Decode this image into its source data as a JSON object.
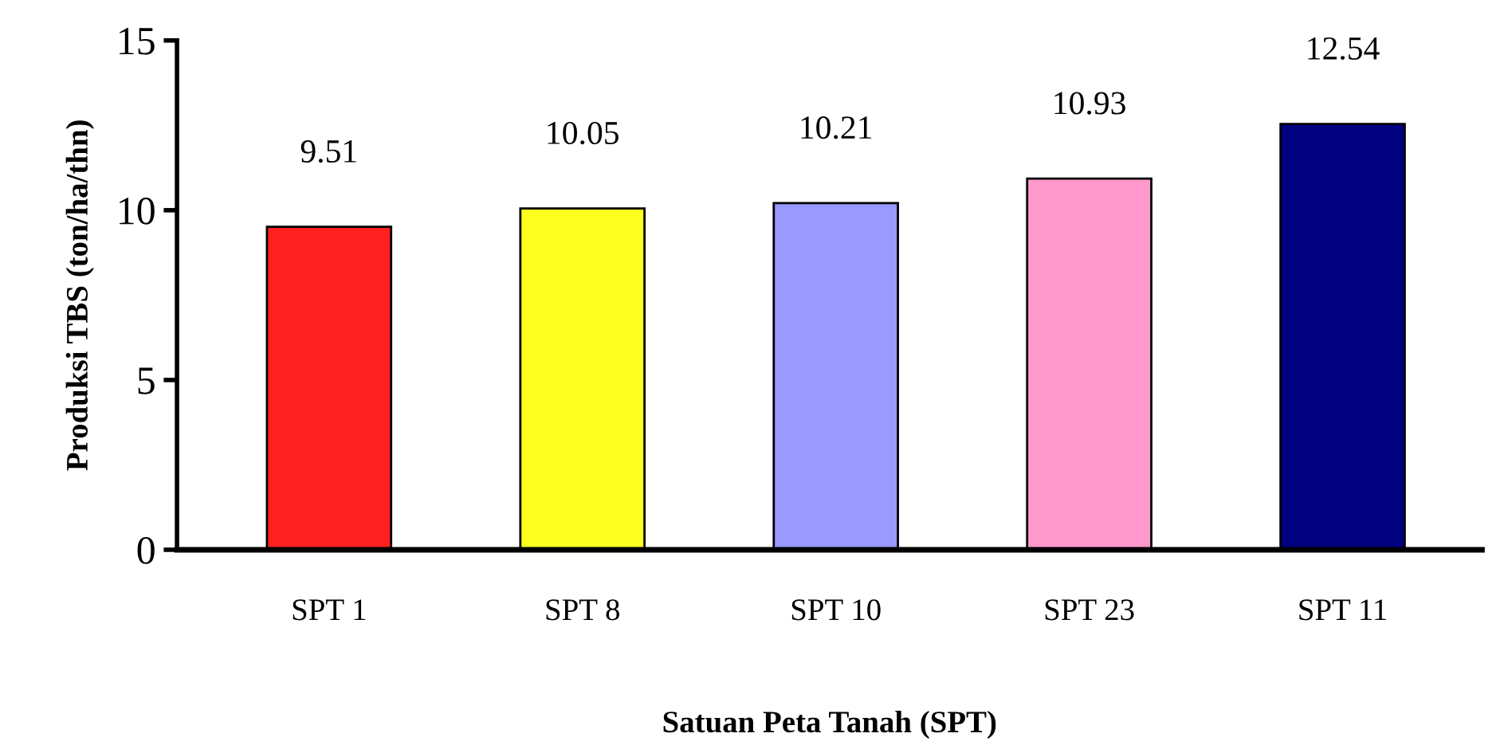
{
  "chart_data": {
    "type": "bar",
    "xlabel": "Satuan Peta Tanah (SPT)",
    "ylabel": "Produksi TBS (ton/ha/thn)",
    "categories": [
      "SPT 1",
      "SPT 8",
      "SPT 10",
      "SPT 23",
      "SPT 11"
    ],
    "values": [
      9.51,
      10.05,
      10.21,
      10.93,
      12.54
    ],
    "colors": [
      "#ff2020",
      "#ffff20",
      "#9999ff",
      "#ff99cc",
      "#000080"
    ],
    "ylim": [
      0,
      15
    ],
    "yticks": [
      0,
      5,
      10,
      15
    ],
    "data_labels": true,
    "grid": false,
    "legend": false
  }
}
